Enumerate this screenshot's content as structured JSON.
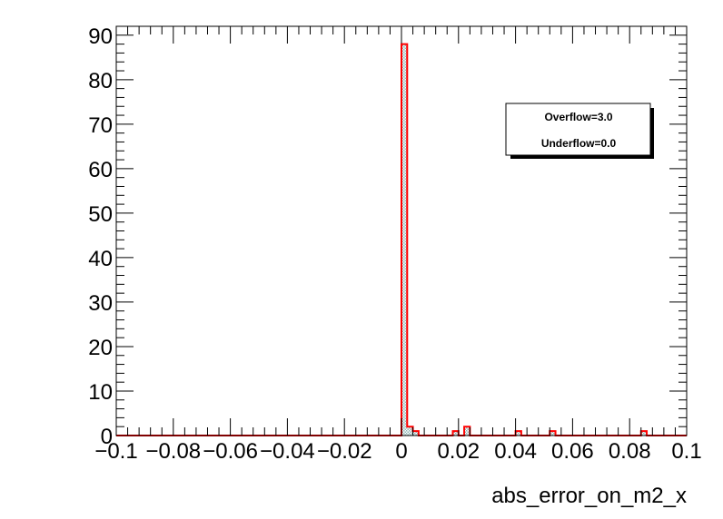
{
  "chart_data": {
    "type": "bar",
    "title": "",
    "xlabel": "abs_error_on_m2_x",
    "ylabel": "",
    "xlim": [
      -0.1,
      0.1
    ],
    "ylim": [
      0,
      92
    ],
    "bin_width": 0.002,
    "x_ticks": [
      -0.1,
      -0.08,
      -0.06,
      -0.04,
      -0.02,
      0,
      0.02,
      0.04,
      0.06,
      0.08,
      0.1
    ],
    "x_tick_labels": [
      "−0.1",
      "−0.08",
      "−0.06",
      "−0.04",
      "−0.02",
      "0",
      "0.02",
      "0.04",
      "0.06",
      "0.08",
      "0.1"
    ],
    "y_ticks": [
      0,
      10,
      20,
      30,
      40,
      50,
      60,
      70,
      80,
      90
    ],
    "y_tick_labels": [
      "0",
      "10",
      "20",
      "30",
      "40",
      "50",
      "60",
      "70",
      "80",
      "90"
    ],
    "bins": [
      {
        "x": 0.0,
        "y": 88
      },
      {
        "x": 0.002,
        "y": 2
      },
      {
        "x": 0.004,
        "y": 1
      },
      {
        "x": 0.018,
        "y": 1
      },
      {
        "x": 0.022,
        "y": 2
      },
      {
        "x": 0.04,
        "y": 1
      },
      {
        "x": 0.052,
        "y": 1
      },
      {
        "x": 0.084,
        "y": 1
      }
    ],
    "grid": false,
    "line_color": "#ff0000",
    "fill_color": "#9fc4c4",
    "stats_box": {
      "overflow_label": "Overflow=3.0",
      "underflow_label": "Underflow=0.0"
    }
  }
}
